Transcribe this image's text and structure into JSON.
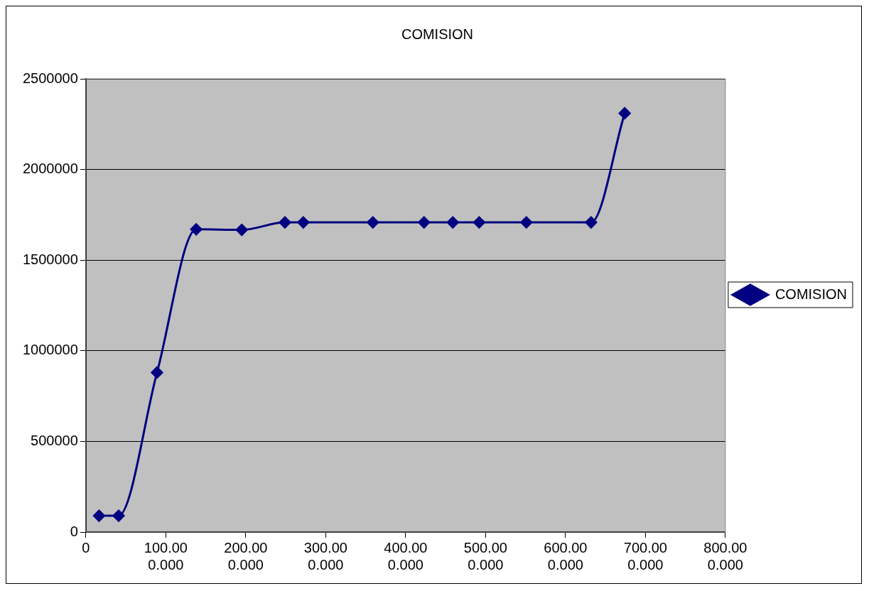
{
  "chart_data": {
    "type": "line",
    "title": "COMISION",
    "x": [
      16500000,
      41000000,
      89000000,
      138000000,
      195000000,
      249000000,
      272000000,
      359000000,
      423000000,
      459000000,
      492000000,
      551000000,
      632000000,
      674000000
    ],
    "series": [
      {
        "name": "COMISION",
        "color": "#000080",
        "values": [
          90000,
          90000,
          880000,
          1670000,
          1667000,
          1708000,
          1708000,
          1708000,
          1708000,
          1708000,
          1708000,
          1708000,
          1708000,
          2310000
        ]
      }
    ],
    "xlim": [
      0,
      800000000
    ],
    "xticks": [
      0,
      {
        "value": 100000000,
        "label": "100.000.000"
      },
      {
        "value": 200000000,
        "label": "200.000.000"
      },
      {
        "value": 300000000,
        "label": "300.000.000"
      },
      {
        "value": 400000000,
        "label": "400.000.000"
      },
      {
        "value": 500000000,
        "label": "500.000.000"
      },
      {
        "value": 600000000,
        "label": "600.000.000"
      },
      {
        "value": 700000000,
        "label": "700.000.000"
      },
      {
        "value": 800000000,
        "label": "800.000.000"
      }
    ],
    "ylim": [
      0,
      2500000
    ],
    "yticks": [
      0,
      500000,
      1000000,
      1500000,
      2000000,
      2500000
    ],
    "grid": "y",
    "legend": "right",
    "marker": "diamond",
    "line_style": "solid"
  }
}
